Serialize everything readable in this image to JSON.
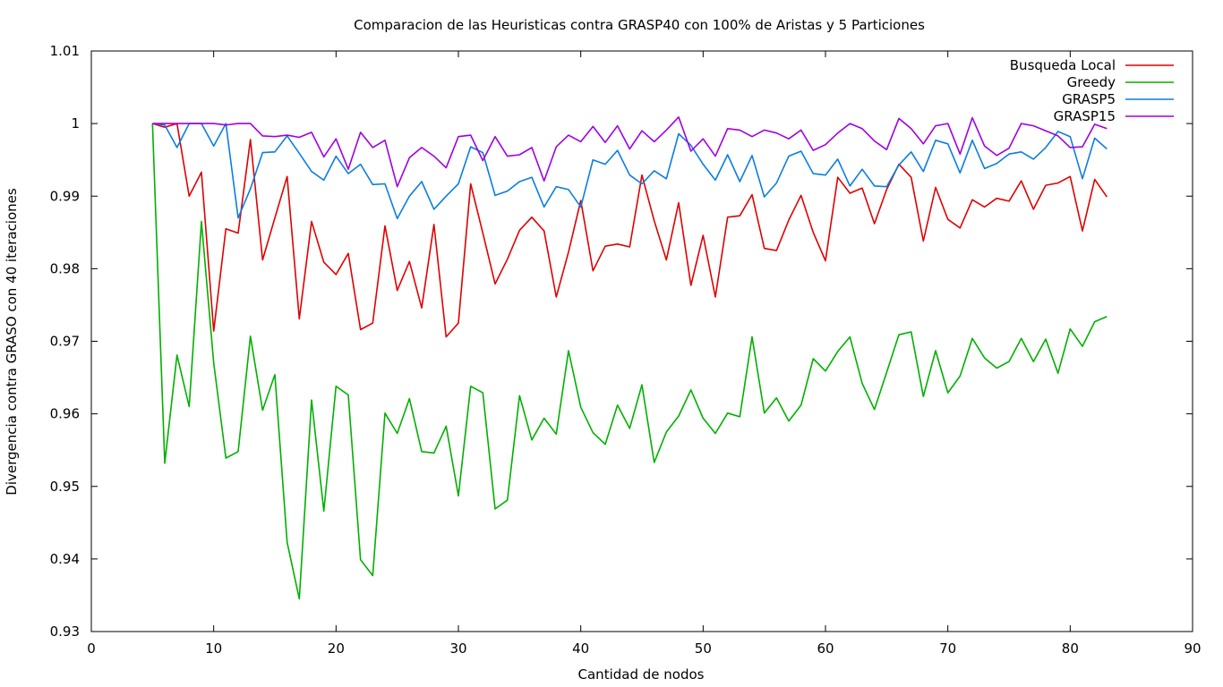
{
  "chart_data": {
    "type": "line",
    "title": "Comparacion de las Heuristicas contra GRASP40 con 100% de Aristas y 5 Particiones",
    "xlabel": "Cantidad de nodos",
    "ylabel": "Divergencia contra GRASO con 40 iteraciones",
    "xlim": [
      0,
      90
    ],
    "ylim": [
      0.93,
      1.01
    ],
    "x_ticks": [
      "0",
      "10",
      "20",
      "30",
      "40",
      "50",
      "60",
      "70",
      "80",
      "90"
    ],
    "y_ticks": [
      "0.93",
      "0.94",
      "0.95",
      "0.96",
      "0.97",
      "0.98",
      "0.99",
      "1",
      "1.01"
    ],
    "grid": false,
    "legend": "top-right",
    "x": [
      5,
      6,
      7,
      8,
      9,
      10,
      11,
      12,
      13,
      14,
      15,
      16,
      17,
      18,
      19,
      20,
      21,
      22,
      23,
      24,
      25,
      26,
      27,
      28,
      29,
      30,
      31,
      32,
      33,
      34,
      35,
      36,
      37,
      38,
      39,
      40,
      41,
      42,
      43,
      44,
      45,
      46,
      47,
      48,
      49,
      50,
      51,
      52,
      53,
      54,
      55,
      56,
      57,
      58,
      59,
      60,
      61,
      62,
      63,
      64,
      65,
      66,
      67,
      68,
      69,
      70,
      71,
      72,
      73,
      74,
      75,
      76,
      77,
      78,
      79,
      80,
      81,
      82,
      83
    ],
    "series": [
      {
        "name": "Busqueda Local",
        "color": "#e00000",
        "values": [
          1.0,
          0.9995,
          1.0,
          0.99,
          0.9933,
          0.9714,
          0.9855,
          0.9849,
          0.9978,
          0.9812,
          0.987,
          0.9927,
          0.9731,
          0.9865,
          0.9809,
          0.9792,
          0.9821,
          0.9716,
          0.9725,
          0.9859,
          0.977,
          0.981,
          0.9746,
          0.9861,
          0.9706,
          0.9725,
          0.9917,
          0.9849,
          0.9779,
          0.9813,
          0.9853,
          0.9871,
          0.9852,
          0.9761,
          0.9823,
          0.9894,
          0.9797,
          0.9831,
          0.9834,
          0.983,
          0.9929,
          0.9866,
          0.9812,
          0.9891,
          0.9777,
          0.9846,
          0.9761,
          0.9871,
          0.9873,
          0.9902,
          0.9828,
          0.9825,
          0.9867,
          0.9901,
          0.985,
          0.9811,
          0.9926,
          0.9904,
          0.9911,
          0.9862,
          0.9909,
          0.9944,
          0.9926,
          0.9838,
          0.9912,
          0.9868,
          0.9856,
          0.9895,
          0.9885,
          0.9897,
          0.9893,
          0.9921,
          0.9882,
          0.9915,
          0.9918,
          0.9927,
          0.9852,
          0.9923,
          0.9899
        ]
      },
      {
        "name": "Greedy",
        "color": "#00b000",
        "values": [
          1.0,
          0.9532,
          0.9681,
          0.961,
          0.9865,
          0.967,
          0.9539,
          0.9548,
          0.9707,
          0.9605,
          0.9654,
          0.9423,
          0.9345,
          0.9619,
          0.9466,
          0.9638,
          0.9626,
          0.9399,
          0.9377,
          0.9601,
          0.9573,
          0.9621,
          0.9548,
          0.9546,
          0.9583,
          0.9487,
          0.9638,
          0.9629,
          0.9469,
          0.9481,
          0.9625,
          0.9564,
          0.9594,
          0.9572,
          0.9687,
          0.9609,
          0.9574,
          0.9558,
          0.9612,
          0.958,
          0.964,
          0.9533,
          0.9575,
          0.9597,
          0.9633,
          0.9594,
          0.9573,
          0.9601,
          0.9596,
          0.9706,
          0.9601,
          0.9622,
          0.959,
          0.9612,
          0.9676,
          0.9659,
          0.9686,
          0.9706,
          0.9642,
          0.9606,
          0.9657,
          0.9709,
          0.9713,
          0.9624,
          0.9687,
          0.9629,
          0.9652,
          0.9704,
          0.9677,
          0.9663,
          0.9672,
          0.9704,
          0.9672,
          0.9703,
          0.9656,
          0.9717,
          0.9693,
          0.9727,
          0.9734
        ]
      },
      {
        "name": "GRASP5",
        "color": "#0a7ee0",
        "values": [
          1.0,
          0.9998,
          0.9967,
          1.0,
          1.0,
          0.9969,
          1.0,
          0.987,
          0.991,
          0.996,
          0.9961,
          0.9983,
          0.9959,
          0.9934,
          0.9922,
          0.9955,
          0.9931,
          0.9944,
          0.9916,
          0.9917,
          0.9869,
          0.99,
          0.992,
          0.9882,
          0.99,
          0.9917,
          0.9968,
          0.996,
          0.9901,
          0.9907,
          0.992,
          0.9926,
          0.9885,
          0.9913,
          0.9909,
          0.9885,
          0.995,
          0.9944,
          0.9963,
          0.9929,
          0.9917,
          0.9935,
          0.9924,
          0.9986,
          0.997,
          0.9944,
          0.9922,
          0.9957,
          0.992,
          0.9956,
          0.9899,
          0.9918,
          0.9955,
          0.9962,
          0.9931,
          0.9929,
          0.9951,
          0.9914,
          0.9937,
          0.9914,
          0.9913,
          0.9943,
          0.9961,
          0.9934,
          0.9977,
          0.9972,
          0.9932,
          0.9977,
          0.9938,
          0.9945,
          0.9958,
          0.9961,
          0.9951,
          0.9967,
          0.9989,
          0.9982,
          0.9924,
          0.998,
          0.9965
        ]
      },
      {
        "name": "GRASP15",
        "color": "#a000e0",
        "values": [
          1.0,
          1.0,
          1.0,
          1.0,
          1.0,
          1.0,
          0.9998,
          1.0,
          1.0,
          0.9983,
          0.9982,
          0.9984,
          0.9981,
          0.9988,
          0.9954,
          0.9979,
          0.9937,
          0.9988,
          0.9967,
          0.9977,
          0.9913,
          0.9953,
          0.9967,
          0.9955,
          0.9939,
          0.9982,
          0.9984,
          0.9949,
          0.9982,
          0.9955,
          0.9957,
          0.9967,
          0.9921,
          0.9968,
          0.9984,
          0.9975,
          0.9996,
          0.9974,
          0.9997,
          0.9965,
          0.999,
          0.9975,
          0.9991,
          1.0009,
          0.9962,
          0.9979,
          0.9955,
          0.9993,
          0.9991,
          0.9982,
          0.9991,
          0.9987,
          0.9979,
          0.9991,
          0.9963,
          0.9971,
          0.9987,
          1.0,
          0.9993,
          0.9976,
          0.9964,
          1.0007,
          0.9993,
          0.9972,
          0.9997,
          1.0,
          0.9958,
          1.0008,
          0.9969,
          0.9956,
          0.9966,
          1.0,
          0.9997,
          0.999,
          0.9983,
          0.9967,
          0.9968,
          0.9999,
          0.9993
        ]
      }
    ]
  }
}
